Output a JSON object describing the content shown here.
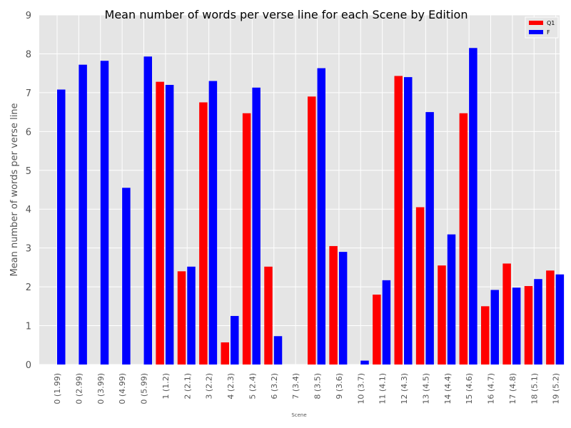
{
  "chart_data": {
    "type": "bar",
    "title": "Mean number of words per verse line for each Scene by Edition",
    "xlabel": "Scene",
    "ylabel": "Mean number of words per verse line",
    "ylim": [
      0,
      9
    ],
    "yticks": [
      0,
      1,
      2,
      3,
      4,
      5,
      6,
      7,
      8,
      9
    ],
    "grid": true,
    "legend_position": "top-right",
    "categories": [
      "0 (1.99)",
      "0 (2.99)",
      "0 (3.99)",
      "0 (4.99)",
      "0 (5.99)",
      "1 (1.2)",
      "2 (2.1)",
      "3 (2.2)",
      "4 (2.3)",
      "5 (2.4)",
      "6 (3.2)",
      "7 (3.4)",
      "8 (3.5)",
      "9 (3.6)",
      "10 (3.7)",
      "11 (4.1)",
      "12 (4.3)",
      "13 (4.5)",
      "14 (4.4)",
      "15 (4.6)",
      "16 (4.7)",
      "17 (4.8)",
      "18 (5.1)",
      "19 (5.2)"
    ],
    "series": [
      {
        "name": "Q1",
        "color": "#ff0000",
        "values": [
          0,
          0,
          0,
          0,
          0,
          7.28,
          2.4,
          6.75,
          0.57,
          6.47,
          2.52,
          0,
          6.9,
          3.05,
          0,
          1.8,
          7.43,
          4.05,
          2.55,
          6.47,
          1.5,
          2.6,
          2.02,
          2.42
        ]
      },
      {
        "name": "F",
        "color": "#0000ff",
        "values": [
          7.08,
          7.72,
          7.82,
          4.55,
          7.93,
          7.2,
          2.52,
          7.3,
          1.25,
          7.13,
          0.73,
          0,
          7.63,
          2.9,
          0.1,
          2.17,
          7.4,
          6.5,
          3.35,
          8.15,
          1.92,
          1.98,
          2.2,
          2.32
        ]
      }
    ]
  }
}
